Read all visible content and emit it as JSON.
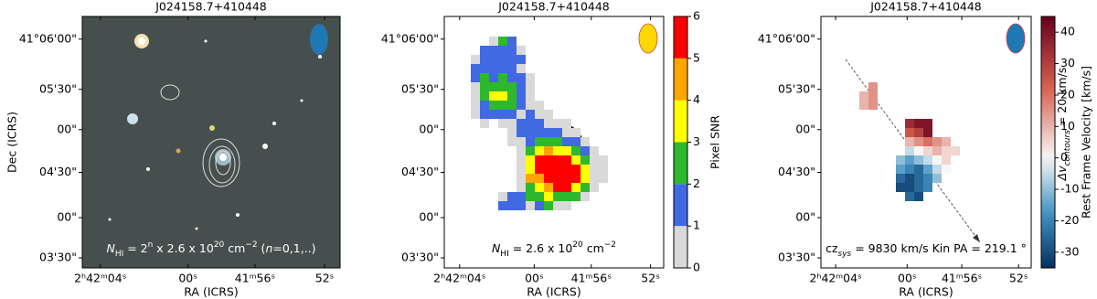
{
  "chart_data": [
    {
      "type": "image",
      "title": "J024158.7+410448",
      "xlabel": "RA (ICRS)",
      "ylabel": "Dec (ICRS)",
      "xticklabels": [
        "2ʰ42ᵐ04ˢ",
        "00ˢ",
        "41ᵐ56ˢ",
        "52ˢ"
      ],
      "yticklabels": [
        "41°06'00\"",
        "05'30\"",
        "00\"",
        "04'30\"",
        "00\"",
        "03'30\""
      ],
      "annotation": [
        "N",
        "HI",
        " = 2",
        "n",
        " x 2.6 x 10",
        "20",
        " cm",
        "−2",
        " (",
        "n",
        "=0,1,..)"
      ]
    },
    {
      "type": "heatmap",
      "title": "J024158.7+410448",
      "xlabel": "RA (ICRS)",
      "xticklabels": [
        "2ʰ42ᵐ04ˢ",
        "00ˢ",
        "41ᵐ56ˢ",
        "52ˢ"
      ],
      "yticklabels": [
        "41°06'00\"",
        "05'30\"",
        "00\"",
        "04'30\"",
        "00\"",
        "03'30\""
      ],
      "annotation": [
        "N",
        "HI",
        " = 2.6 x 10",
        "20",
        " cm",
        "−2"
      ],
      "colorbar_label": "Pixel SNR",
      "clim": [
        0,
        6
      ],
      "cticks": [
        0,
        1,
        2,
        3,
        4,
        5,
        6
      ],
      "colors": [
        "#d9d9d9",
        "#4169e1",
        "#2db82d",
        "#ffff00",
        "#ffa500",
        "#ff0000"
      ],
      "values": [
        [
          null,
          null,
          0.5,
          2.5,
          1.5,
          null,
          null,
          null,
          null,
          null,
          null,
          null,
          null,
          null,
          null
        ],
        [
          null,
          1.5,
          1.5,
          1.5,
          1.5,
          0.5,
          null,
          null,
          null,
          null,
          null,
          null,
          null,
          null,
          null
        ],
        [
          0.5,
          1.5,
          1.5,
          1.5,
          1.5,
          1.5,
          null,
          null,
          null,
          null,
          null,
          null,
          null,
          null,
          null
        ],
        [
          1.5,
          1.5,
          1.5,
          1.5,
          1.5,
          0.5,
          null,
          null,
          null,
          null,
          null,
          null,
          null,
          null,
          null
        ],
        [
          1.5,
          2.5,
          1.5,
          2.5,
          1.5,
          1.5,
          0.5,
          null,
          null,
          null,
          null,
          null,
          null,
          null,
          null
        ],
        [
          0.5,
          2.5,
          2.5,
          2.5,
          2.5,
          1.5,
          0.5,
          null,
          null,
          null,
          null,
          null,
          null,
          null,
          null
        ],
        [
          0.5,
          2.5,
          3.5,
          3.5,
          2.5,
          1.5,
          0.5,
          null,
          null,
          null,
          null,
          null,
          null,
          null,
          null
        ],
        [
          0.5,
          1.5,
          2.5,
          2.5,
          2.5,
          1.5,
          0.5,
          0.5,
          null,
          null,
          null,
          null,
          null,
          null,
          null
        ],
        [
          0.5,
          1.5,
          1.5,
          1.5,
          1.5,
          0.5,
          1.5,
          0.5,
          0.5,
          null,
          null,
          null,
          null,
          null,
          null
        ],
        [
          null,
          0.5,
          null,
          0.5,
          0.5,
          1.5,
          1.5,
          1.5,
          0.5,
          0.5,
          0.5,
          null,
          null,
          null,
          null
        ],
        [
          null,
          null,
          null,
          null,
          0.5,
          1.5,
          1.5,
          1.5,
          1.5,
          1.5,
          0.5,
          0.5,
          null,
          null,
          null
        ],
        [
          null,
          null,
          null,
          null,
          0.5,
          0.5,
          1.5,
          2.5,
          2.5,
          2.5,
          1.5,
          1.5,
          0.5,
          null,
          null
        ],
        [
          null,
          null,
          null,
          null,
          null,
          0.5,
          2.5,
          3.5,
          4.5,
          3.5,
          3.5,
          2.5,
          1.5,
          0.5,
          null
        ],
        [
          null,
          null,
          null,
          null,
          null,
          0.5,
          3.5,
          5.5,
          5.5,
          5.5,
          5.5,
          3.5,
          2.5,
          0.5,
          0.5
        ],
        [
          null,
          null,
          null,
          null,
          null,
          0.5,
          3.5,
          5.5,
          5.5,
          5.5,
          5.5,
          5.5,
          3.5,
          0.5,
          0.5
        ],
        [
          null,
          null,
          null,
          null,
          null,
          0.5,
          4.5,
          4.5,
          5.5,
          5.5,
          5.5,
          5.5,
          3.5,
          0.5,
          0.5
        ],
        [
          null,
          null,
          null,
          null,
          null,
          0.5,
          2.5,
          3.5,
          4.5,
          5.5,
          5.5,
          3.5,
          2.5,
          0.5,
          null
        ],
        [
          null,
          null,
          null,
          0.5,
          1.5,
          1.5,
          2.5,
          2.5,
          3.5,
          2.5,
          2.5,
          2.5,
          0.5,
          null,
          null
        ],
        [
          null,
          null,
          null,
          1.5,
          1.5,
          1.5,
          0.5,
          1.5,
          2.5,
          0.5,
          0.5,
          null,
          null,
          null,
          null
        ]
      ]
    },
    {
      "type": "heatmap",
      "title": "J024158.7+410448",
      "xlabel": "RA (ICRS)",
      "xticklabels": [
        "2ʰ42ᵐ04ˢ",
        "00ˢ",
        "41ᵐ56ˢ",
        "52ˢ"
      ],
      "yticklabels": [
        "41°06'00\"",
        "05'30\"",
        "00\"",
        "04'30\"",
        "00\"",
        "03'30\""
      ],
      "annotation": [
        "cz",
        "sys",
        " = 9830 km/s  Kin PA = 219.1 °"
      ],
      "contour_label": [
        "Δv",
        "contours",
        " = 20 km/s"
      ],
      "colorbar_label": "Rest Frame Velocity [km/s]",
      "colormap": "RdBu_r",
      "clim": [
        -35,
        45
      ],
      "cticks": [
        -30,
        -20,
        -10,
        0,
        10,
        20,
        30,
        40
      ],
      "values": [
        [
          null,
          15,
          null,
          null,
          null,
          null,
          null,
          null,
          null,
          null,
          null
        ],
        [
          10,
          15,
          null,
          null,
          null,
          null,
          null,
          null,
          null,
          null,
          null
        ],
        [
          10,
          15,
          null,
          null,
          null,
          null,
          null,
          null,
          null,
          null,
          null
        ],
        [
          null,
          null,
          null,
          null,
          null,
          null,
          null,
          null,
          null,
          null,
          null
        ],
        [
          null,
          null,
          null,
          null,
          null,
          35,
          40,
          40,
          null,
          null,
          null
        ],
        [
          null,
          null,
          null,
          null,
          null,
          25,
          30,
          40,
          null,
          null,
          null
        ],
        [
          null,
          null,
          null,
          null,
          null,
          10,
          15,
          20,
          15,
          10,
          null
        ],
        [
          null,
          null,
          null,
          null,
          null,
          -5,
          0,
          5,
          10,
          5,
          5
        ],
        [
          null,
          null,
          null,
          null,
          -10,
          -15,
          -10,
          -5,
          0,
          5,
          null
        ],
        [
          null,
          null,
          null,
          null,
          -15,
          -20,
          -25,
          -15,
          -5,
          0,
          null
        ],
        [
          null,
          null,
          null,
          null,
          -25,
          -30,
          -25,
          -20,
          -10,
          null,
          null
        ],
        [
          null,
          null,
          null,
          null,
          -30,
          -30,
          -25,
          -20,
          null,
          null,
          null
        ],
        [
          null,
          null,
          null,
          null,
          null,
          -25,
          -30,
          null,
          null,
          null,
          null
        ]
      ]
    }
  ]
}
